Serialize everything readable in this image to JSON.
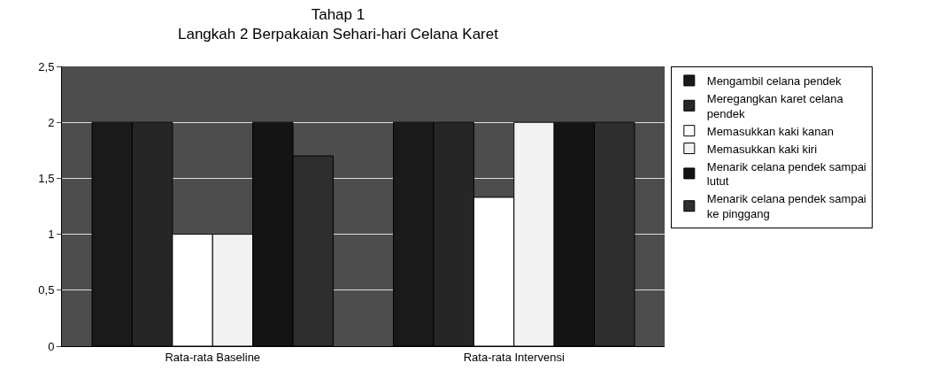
{
  "chart_data": {
    "type": "bar",
    "title": "Tahap 1",
    "subtitle": "Langkah 2 Berpakaian Sehari-hari Celana Karet",
    "categories": [
      "Rata-rata Baseline",
      "Rata-rata Intervensi"
    ],
    "series": [
      {
        "name": "Mengambil celana pendek",
        "color": "#1a1a1a",
        "values": [
          2,
          2
        ]
      },
      {
        "name": "Meregangkan karet celana pendek",
        "color": "#262626",
        "values": [
          2,
          2
        ]
      },
      {
        "name": "Memasukkan kaki kanan",
        "color": "#ffffff",
        "values": [
          1,
          1.33
        ]
      },
      {
        "name": "Memasukkan kaki kiri",
        "color": "#f2f2f2",
        "values": [
          1,
          2
        ]
      },
      {
        "name": "Menarik celana pendek sampai lutut",
        "color": "#141414",
        "values": [
          2,
          2
        ]
      },
      {
        "name": "Menarik celana pendek sampai ke pinggang",
        "color": "#2e2e2e",
        "values": [
          1.7,
          2
        ]
      }
    ],
    "ylim": [
      0,
      2.5
    ],
    "yticks": [
      {
        "value": 0,
        "label": "0"
      },
      {
        "value": 0.5,
        "label": "0,5"
      },
      {
        "value": 1,
        "label": "1"
      },
      {
        "value": 1.5,
        "label": "1,5"
      },
      {
        "value": 2,
        "label": "2"
      },
      {
        "value": 2.5,
        "label": "2,5"
      }
    ],
    "grid": "y",
    "legend": "right"
  }
}
